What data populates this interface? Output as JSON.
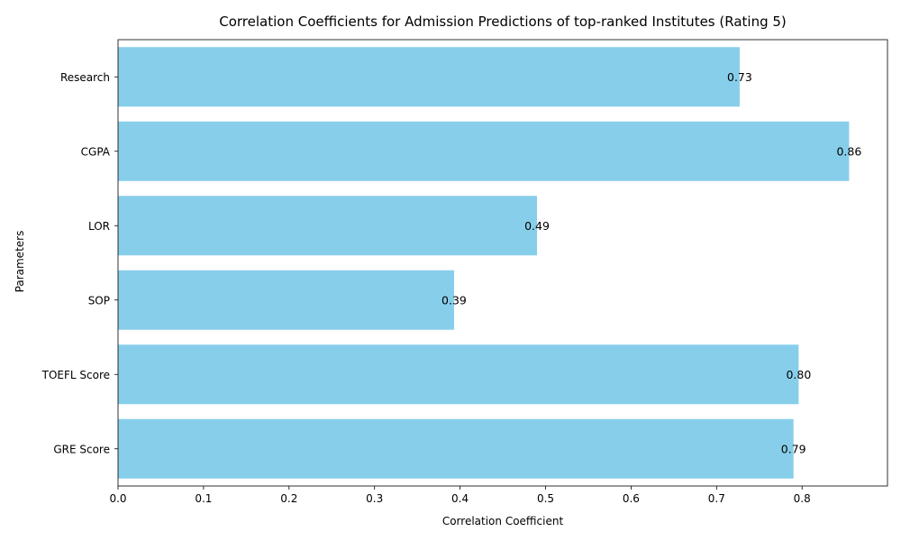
{
  "chart_data": {
    "type": "bar",
    "orientation": "horizontal",
    "title": "Correlation Coefficients for Admission Predictions of top-ranked Institutes (Rating 5)",
    "xlabel": "Correlation Coefficient",
    "ylabel": "Parameters",
    "categories": [
      "GRE Score",
      "TOEFL Score",
      "SOP",
      "LOR",
      "CGPA",
      "Research"
    ],
    "values": [
      0.79,
      0.796,
      0.393,
      0.49,
      0.855,
      0.727
    ],
    "data_labels": [
      "0.79",
      "0.80",
      "0.39",
      "0.49",
      "0.86",
      "0.73"
    ],
    "xlim": [
      0,
      0.9
    ],
    "xticks": [
      0.0,
      0.1,
      0.2,
      0.3,
      0.4,
      0.5,
      0.6,
      0.7,
      0.8
    ],
    "xtick_labels": [
      "0.0",
      "0.1",
      "0.2",
      "0.3",
      "0.4",
      "0.5",
      "0.6",
      "0.7",
      "0.8"
    ],
    "bar_color": "#87ceeb",
    "grid": false,
    "legend": "none"
  }
}
